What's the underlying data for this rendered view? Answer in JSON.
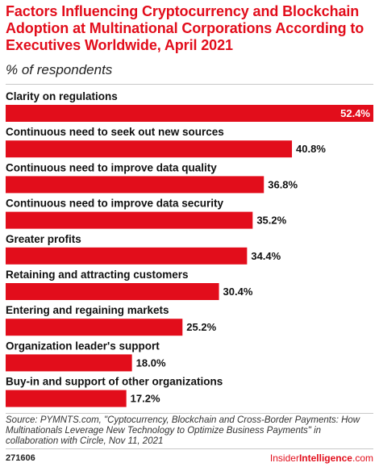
{
  "header": {
    "title": "Factors Influencing Cryptocurrency and Blockchain Adoption at Multinational Corporations According to Executives Worldwide, April 2021",
    "subtitle": "% of respondents"
  },
  "footer": {
    "source": "Source: PYMNTS.com, \"Cyptocurrency, Blockchain and Cross-Border Payments: How Multinationals Leverage New Technology to Optimize Business Payments\" in collaboration with Circle, Nov 11, 2021",
    "chart_id": "271606",
    "brand_prefix": "Insider",
    "brand_suffix": "Intelligence",
    "brand_domain": ".com"
  },
  "chart_data": {
    "type": "bar",
    "orientation": "horizontal",
    "title": "Factors Influencing Cryptocurrency and Blockchain Adoption at Multinational Corporations According to Executives Worldwide, April 2021",
    "subtitle": "% of respondents",
    "categories": [
      "Clarity on regulations",
      "Continuous need to seek out new sources",
      "Continuous need to improve data quality",
      "Continuous need to improve data security",
      "Greater profits",
      "Retaining and attracting customers",
      "Entering and regaining markets",
      "Organization leader's support",
      "Buy-in and support of other organizations"
    ],
    "values": [
      52.4,
      40.8,
      36.8,
      35.2,
      34.4,
      30.4,
      25.2,
      18.0,
      17.2
    ],
    "value_labels": [
      "52.4%",
      "40.8%",
      "36.8%",
      "35.2%",
      "34.4%",
      "30.4%",
      "25.2%",
      "18.0%",
      "17.2%"
    ],
    "xlim": [
      0,
      52.4
    ],
    "bar_color": "#e20d1b",
    "grid": false,
    "legend": "none"
  }
}
